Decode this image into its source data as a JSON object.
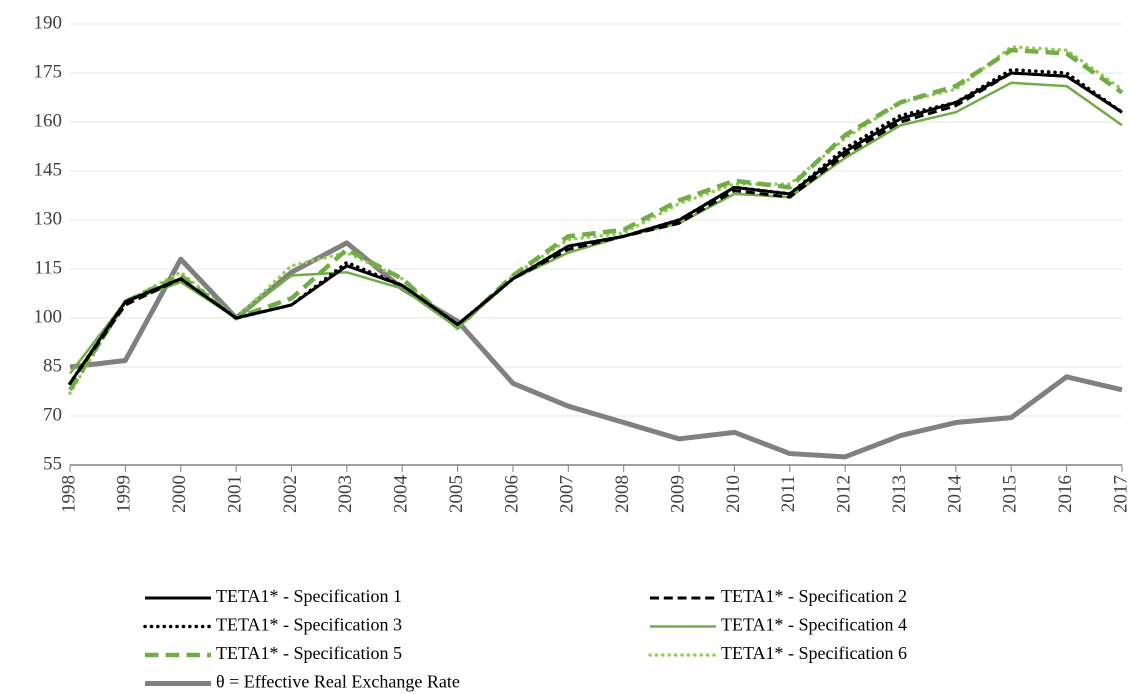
{
  "chart_data": {
    "type": "line",
    "categories": [
      "1998",
      "1999",
      "2000",
      "2001",
      "2002",
      "2003",
      "2004",
      "2005",
      "2006",
      "2007",
      "2008",
      "2009",
      "2010",
      "2011",
      "2012",
      "2013",
      "2014",
      "2015",
      "2016",
      "2017"
    ],
    "ylim": [
      55,
      190
    ],
    "yticks": [
      55,
      70,
      85,
      100,
      115,
      130,
      145,
      160,
      175,
      190
    ],
    "grid": true,
    "series": [
      {
        "name": "TETA1* - Specification 1",
        "color": "#000000",
        "dash": "solid",
        "width": 3,
        "values": [
          80,
          105,
          112,
          100,
          104,
          116,
          110,
          98,
          112,
          122,
          125,
          130,
          140,
          138,
          151,
          161,
          166,
          175,
          174,
          163
        ]
      },
      {
        "name": "TETA1* - Specification 2",
        "color": "#000000",
        "dash": "dashed",
        "width": 3,
        "values": [
          80,
          104,
          112,
          100,
          104,
          116,
          110,
          98,
          112,
          121,
          125,
          129,
          139,
          137,
          150,
          160,
          165,
          175,
          174,
          163
        ]
      },
      {
        "name": "TETA1* - Specification 3",
        "color": "#000000",
        "dash": "dotted",
        "width": 3.5,
        "values": [
          80,
          105,
          112,
          100,
          104,
          117,
          110,
          98,
          112,
          122,
          125,
          130,
          140,
          138,
          152,
          162,
          166,
          176,
          175,
          163
        ]
      },
      {
        "name": "TETA1* - Specification 4",
        "color": "#70ad47",
        "dash": "solid",
        "width": 2.5,
        "values": [
          83,
          105,
          111,
          100,
          113,
          114,
          109,
          97,
          112,
          120,
          125,
          129,
          138,
          137,
          149,
          159,
          163,
          172,
          171,
          159
        ]
      },
      {
        "name": "TETA1* - Specification 5",
        "color": "#70ad47",
        "dash": "dashed",
        "width": 4.5,
        "values": [
          78,
          105,
          113,
          100,
          106,
          121,
          112,
          97,
          113,
          125,
          127,
          136,
          142,
          140,
          156,
          166,
          171,
          182,
          181,
          169
        ]
      },
      {
        "name": "TETA1* - Specification 6",
        "color": "#92d050",
        "dash": "dotted",
        "width": 3.5,
        "values": [
          77,
          105,
          114,
          100,
          116,
          120,
          112,
          97,
          113,
          124,
          126,
          135,
          141,
          141,
          155,
          166,
          170,
          183,
          182,
          170
        ]
      },
      {
        "name": "θ = Effective Real Exchange Rate",
        "color": "#808080",
        "dash": "solid",
        "width": 5,
        "values": [
          85,
          87,
          118,
          100,
          114,
          123,
          109,
          99,
          80,
          73,
          68,
          63,
          65,
          58.5,
          57.5,
          64,
          68,
          69.5,
          82,
          78
        ]
      }
    ]
  }
}
